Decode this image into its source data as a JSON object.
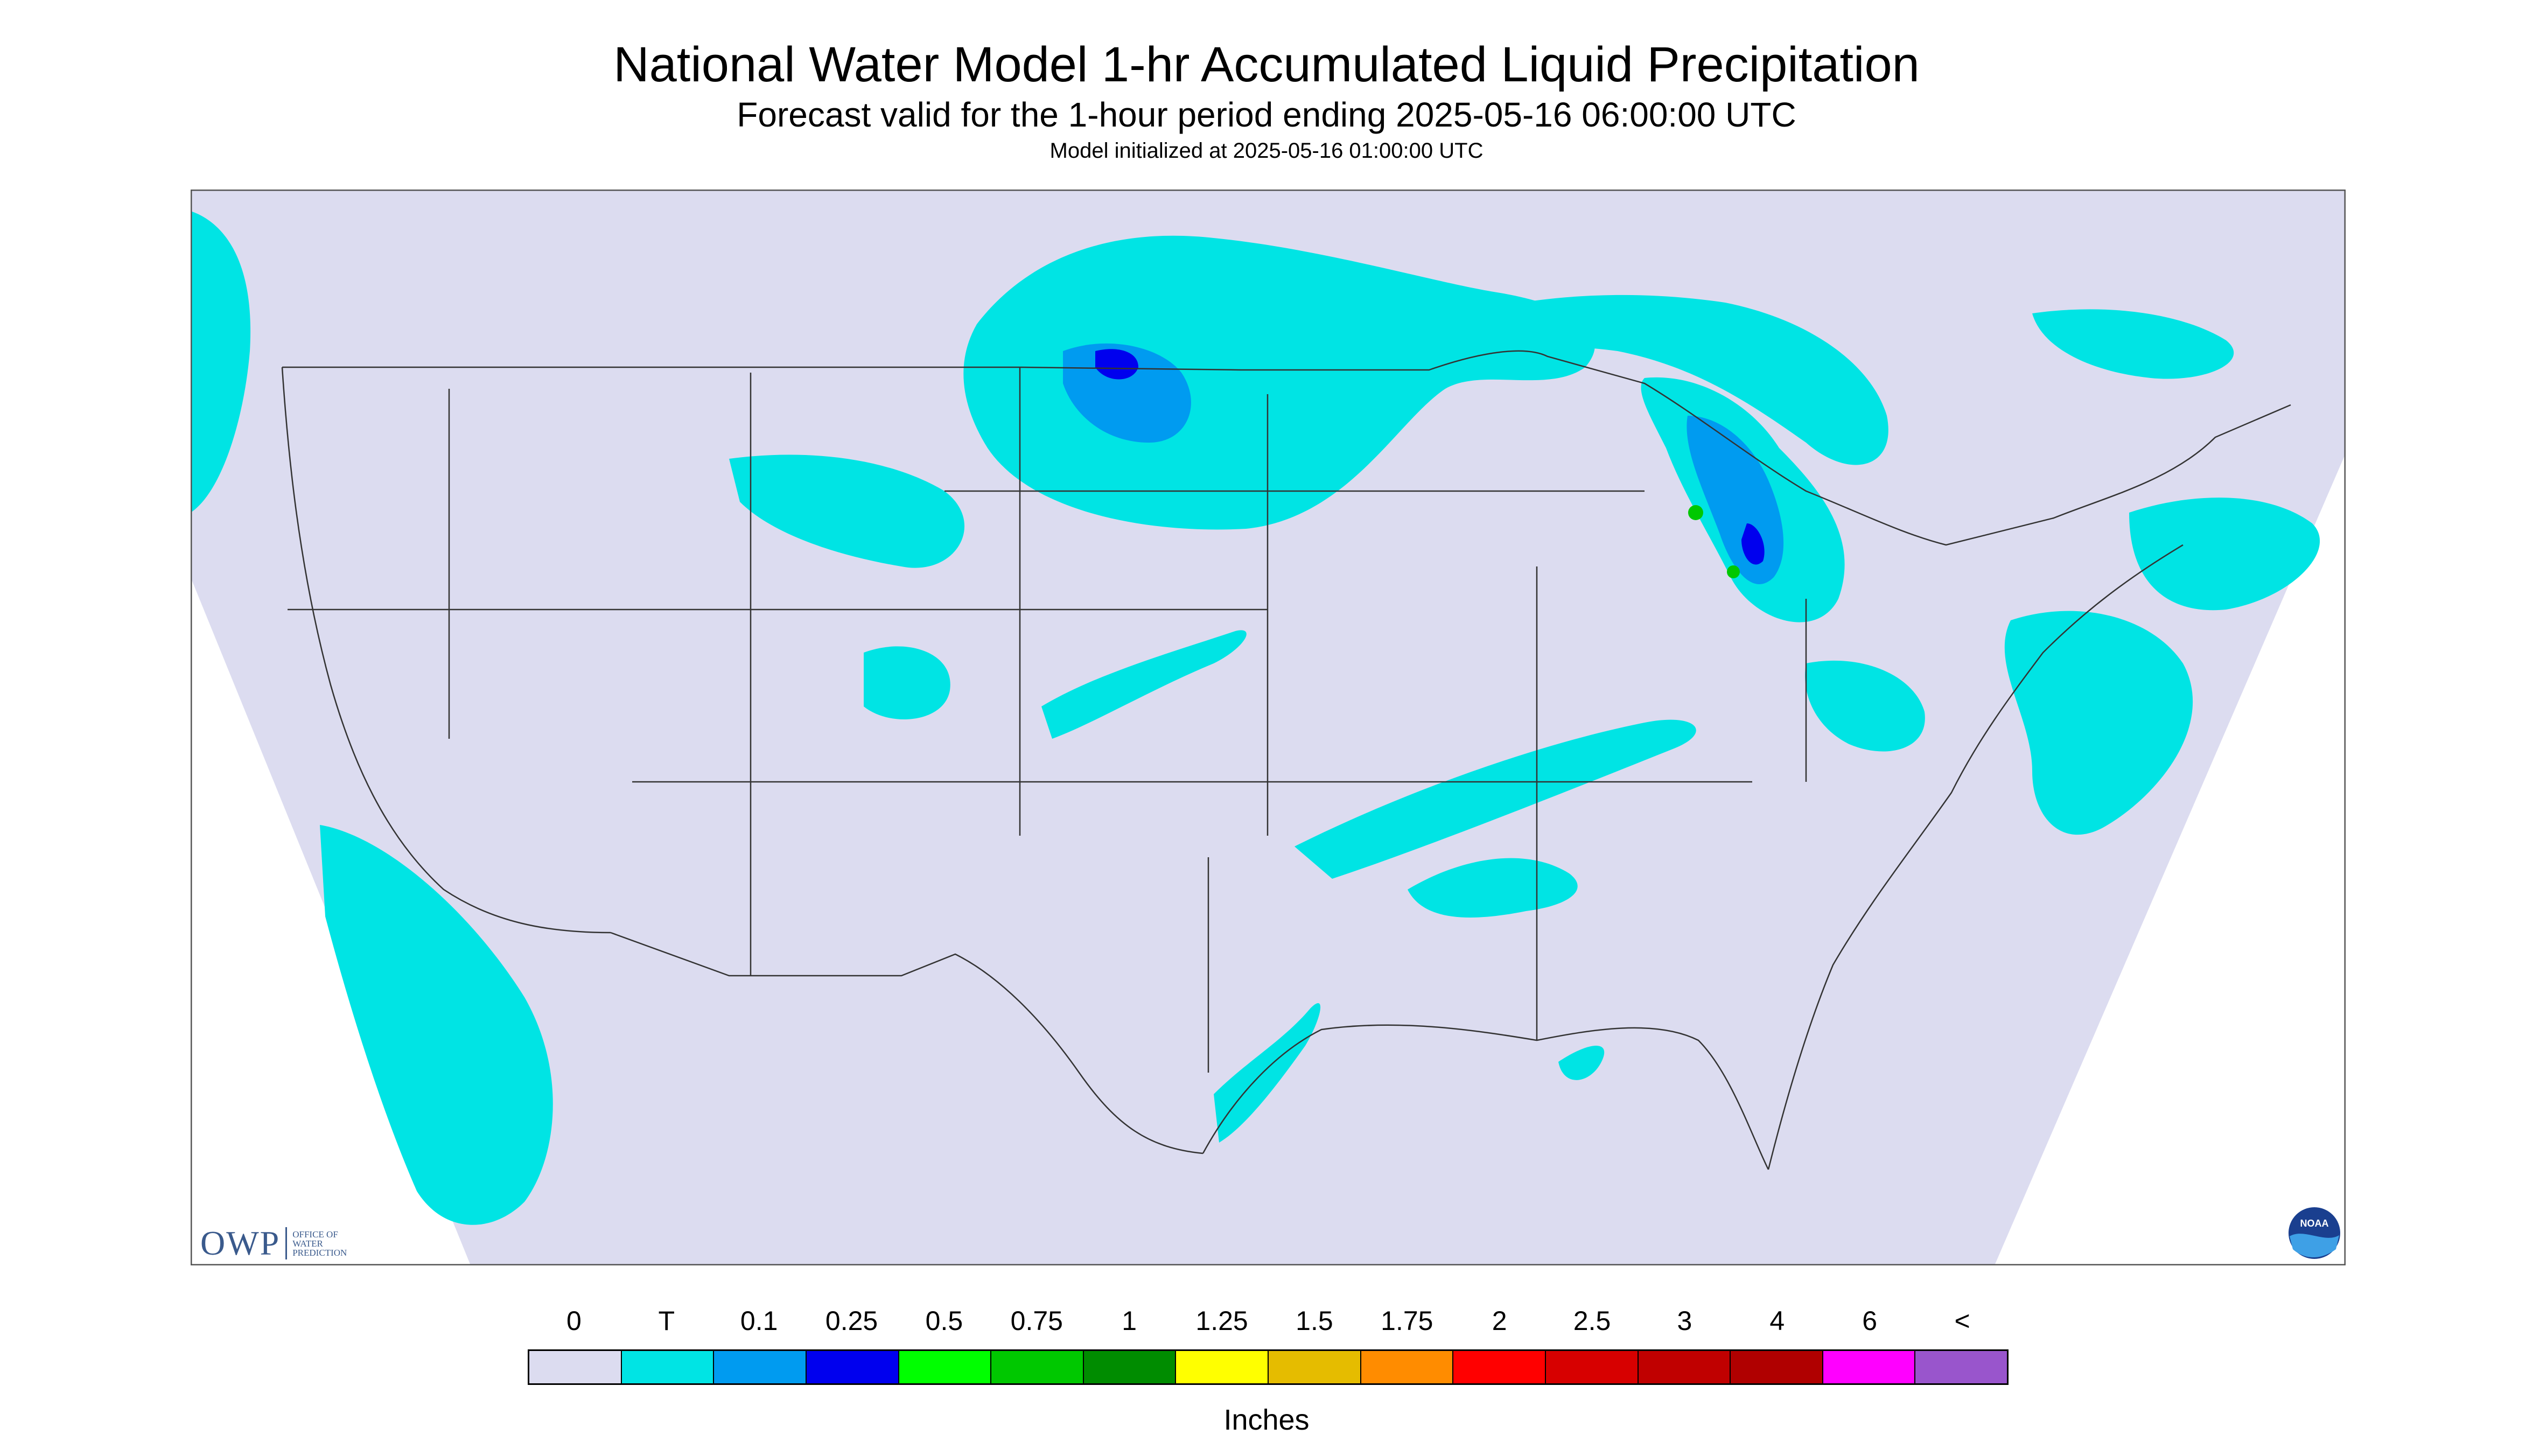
{
  "header": {
    "title": "National Water Model 1-hr Accumulated Liquid Precipitation",
    "subtitle": "Forecast valid for the 1-hour period ending 2025-05-16 06:00:00 UTC",
    "init": "Model initialized at 2025-05-16 01:00:00 UTC"
  },
  "map": {
    "region": "CONUS",
    "background_color": "#dcdcf0",
    "outside_color": "#ffffff"
  },
  "logos": {
    "owp_abbrev": "OWP",
    "owp_line1": "OFFICE OF",
    "owp_line2": "WATER",
    "owp_line3": "PREDICTION",
    "noaa_text": "NOAA"
  },
  "legend": {
    "labels": [
      "0",
      "T",
      "0.1",
      "0.25",
      "0.5",
      "0.75",
      "1",
      "1.25",
      "1.5",
      "1.75",
      "2",
      "2.5",
      "3",
      "4",
      "6",
      "<"
    ],
    "colors": [
      "#dcdcf0",
      "#00e4e4",
      "#009bf0",
      "#0000ee",
      "#00ff00",
      "#00c800",
      "#008c00",
      "#ffff00",
      "#e5bc00",
      "#ff8c00",
      "#ff0000",
      "#d70000",
      "#c00000",
      "#b00000",
      "#ff00ff",
      "#9955cc"
    ],
    "units": "Inches"
  }
}
